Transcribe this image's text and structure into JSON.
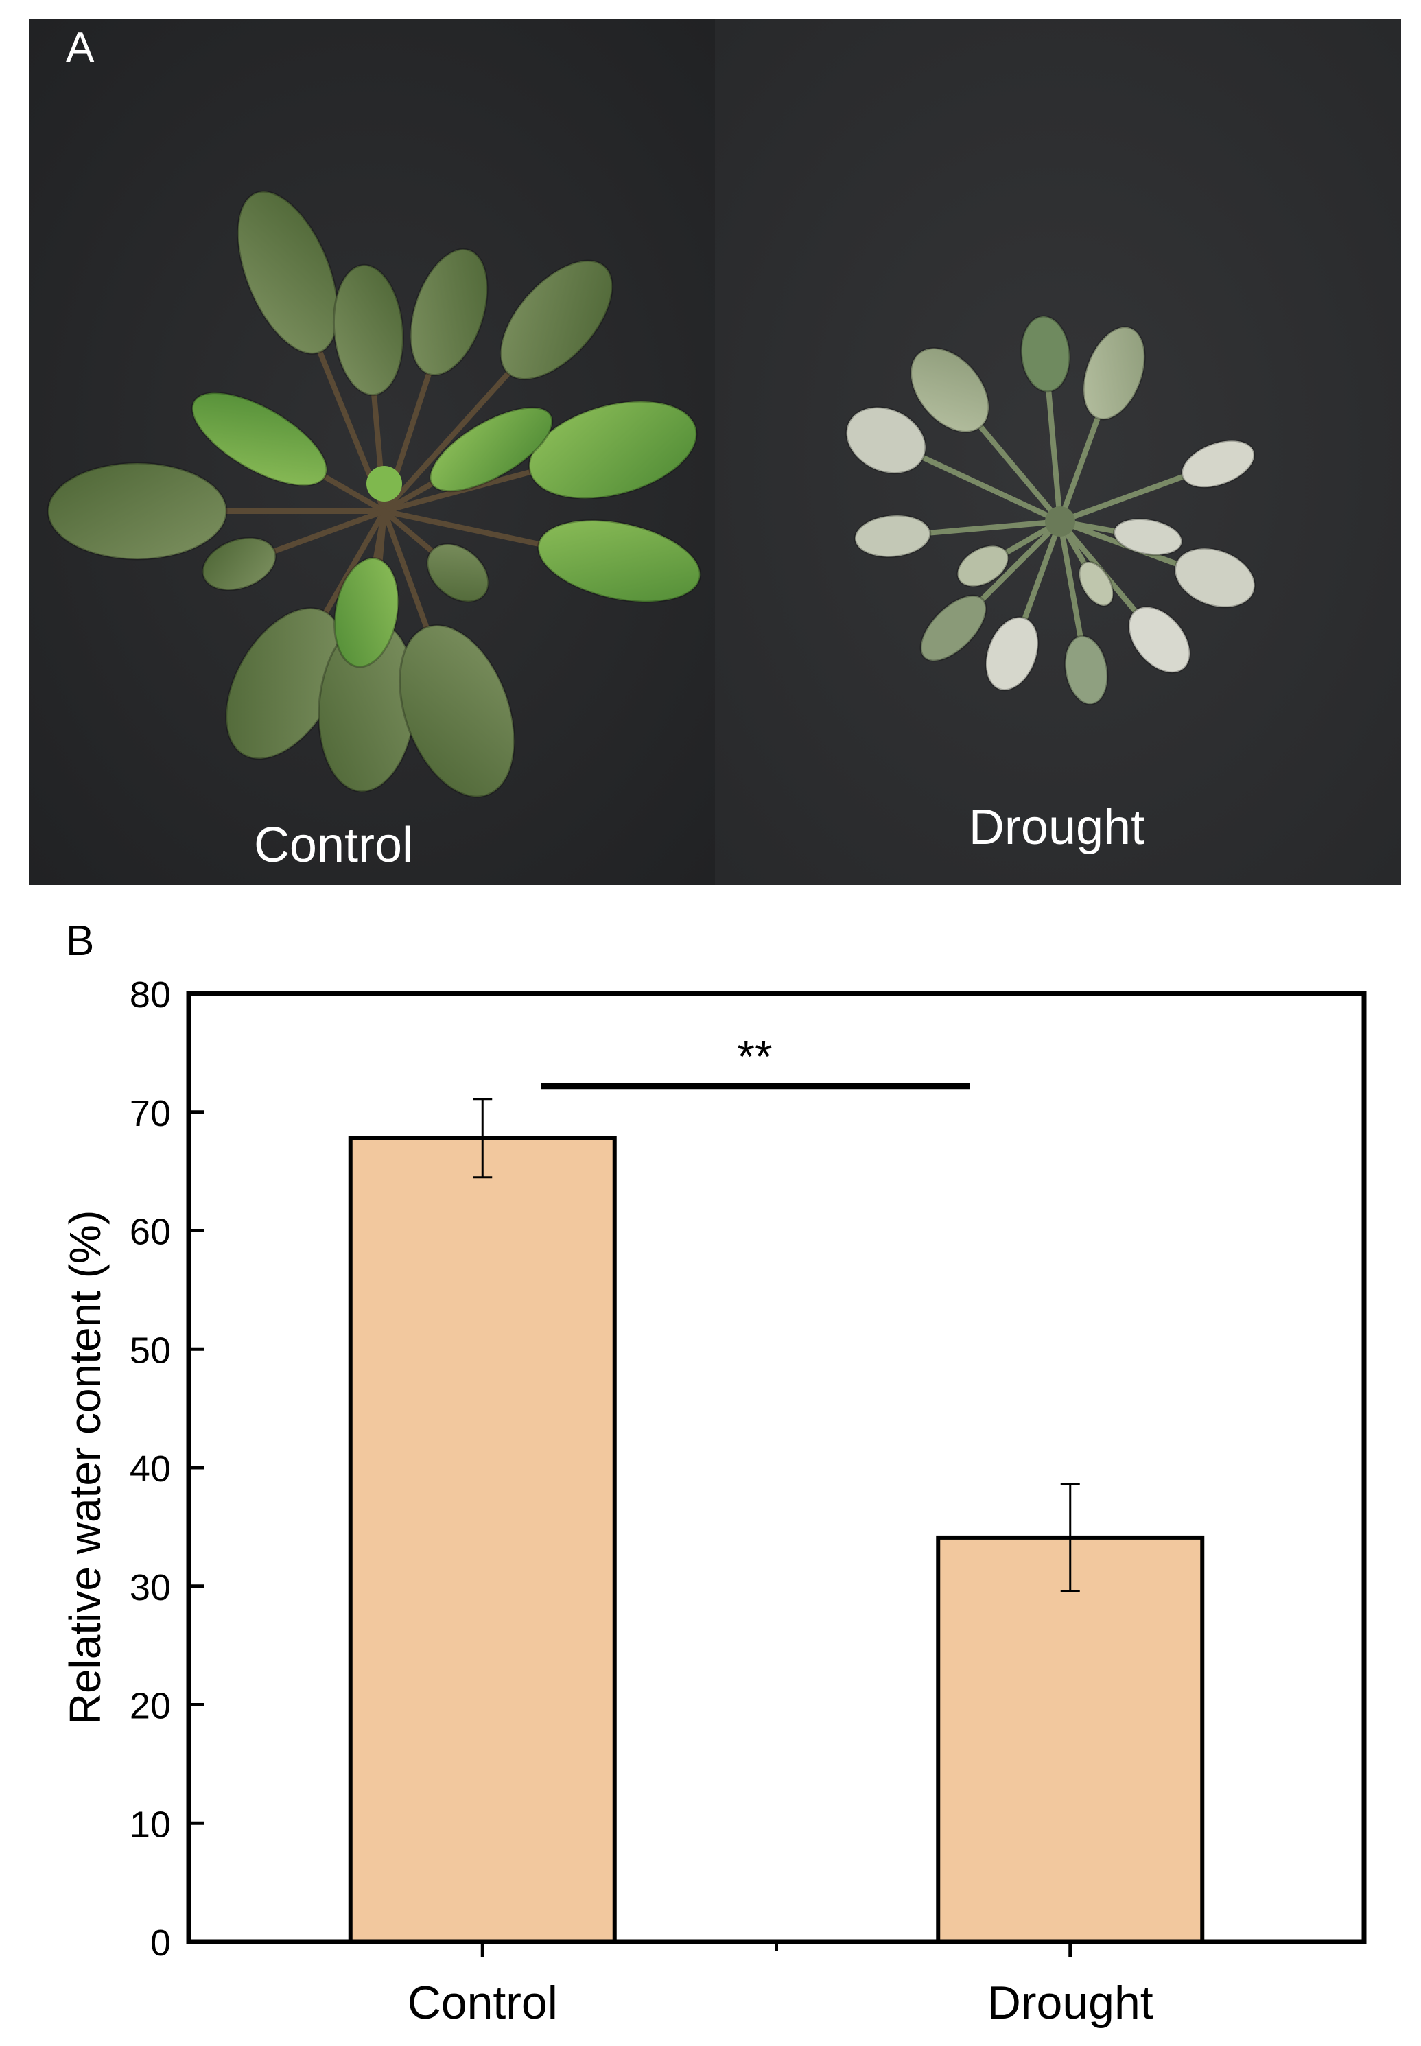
{
  "panel_a": {
    "panel_label": "A",
    "labels": {
      "control": "Control",
      "drought": "Drought"
    }
  },
  "panel_b": {
    "panel_label": "B"
  },
  "colors": {
    "bar_fill": "#f2c89e",
    "bar_stroke": "#000000",
    "photo_background": "#2a2b2d",
    "healthy_leaf": "#5f7a45",
    "wilted_leaf": "#a7b392"
  },
  "chart_data": {
    "type": "bar",
    "categories": [
      "Control",
      "Drought"
    ],
    "values": [
      67.8,
      34.1
    ],
    "error": [
      3.3,
      4.5
    ],
    "ylabel": "Relative water content (%)",
    "xlabel": "",
    "title": "",
    "ylim": [
      0,
      80
    ],
    "yticks": [
      0,
      10,
      20,
      30,
      40,
      50,
      60,
      70,
      80
    ],
    "significance": {
      "between": [
        "Control",
        "Drought"
      ],
      "label": "**"
    },
    "grid": false,
    "legend": "none"
  }
}
